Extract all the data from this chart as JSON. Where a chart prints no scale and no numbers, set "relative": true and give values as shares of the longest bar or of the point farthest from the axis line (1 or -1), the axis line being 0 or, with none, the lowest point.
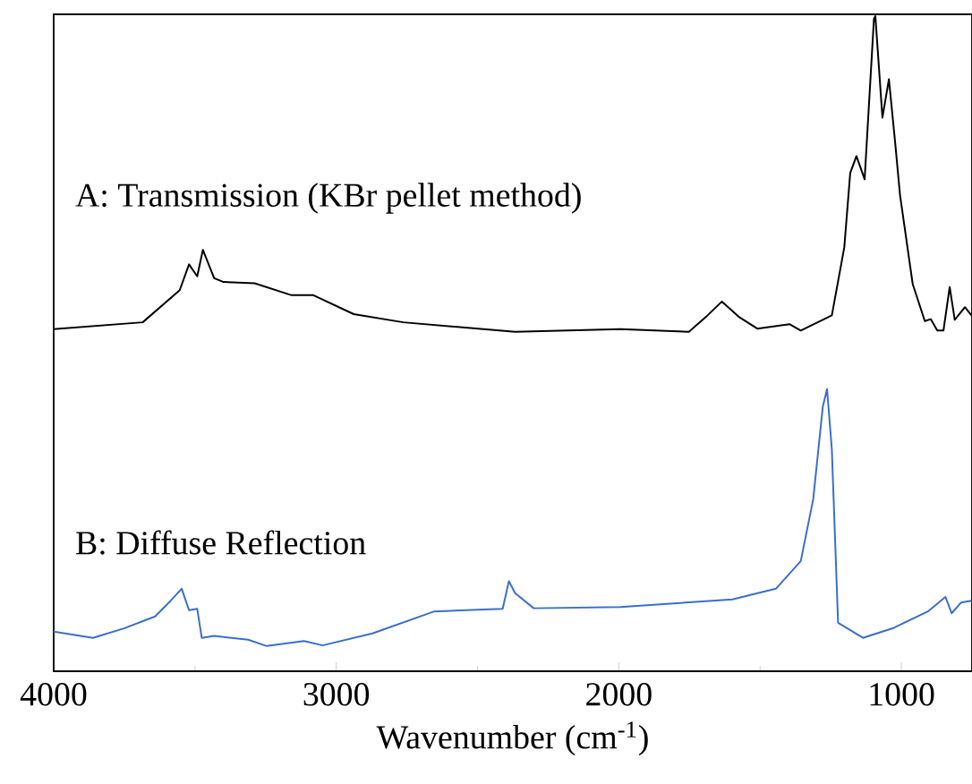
{
  "chart_data": {
    "type": "line",
    "relative": true,
    "xlabel": "Wavenumber (cm$^{-1}$)",
    "xlim": [
      4000,
      750
    ],
    "xticks": [
      4000,
      3000,
      2000,
      1000
    ],
    "series": [
      {
        "name": "A: Transmission (KBr pellet method)",
        "color": "#000000",
        "x": [
          4000,
          3685,
          3554,
          3521,
          3492,
          3472,
          3432,
          3399,
          3289,
          3158,
          3081,
          2938,
          2763,
          2367,
          1994,
          1752,
          1686,
          1635,
          1576,
          1510,
          1396,
          1356,
          1246,
          1202,
          1181,
          1159,
          1130,
          1097,
          1092,
          1067,
          1044,
          1020,
          1005,
          960,
          917,
          896,
          873,
          851,
          829,
          811,
          775,
          752
        ],
        "values": [
          0.503,
          0.514,
          0.565,
          0.606,
          0.587,
          0.629,
          0.584,
          0.578,
          0.576,
          0.557,
          0.557,
          0.527,
          0.514,
          0.499,
          0.503,
          0.499,
          0.525,
          0.547,
          0.523,
          0.504,
          0.511,
          0.501,
          0.525,
          0.633,
          0.751,
          0.778,
          0.741,
          0.996,
          1.0,
          0.839,
          0.9,
          0.79,
          0.717,
          0.575,
          0.516,
          0.519,
          0.501,
          0.501,
          0.57,
          0.518,
          0.538,
          0.525
        ]
      },
      {
        "name": "B: Diffuse Reflection",
        "color": "#3a6fcb",
        "x": [
          4000,
          3861,
          3751,
          3641,
          3586,
          3547,
          3521,
          3492,
          3476,
          3432,
          3312,
          3246,
          3114,
          3048,
          2872,
          2653,
          2411,
          2389,
          2367,
          2301,
          1994,
          1598,
          1444,
          1356,
          1312,
          1278,
          1263,
          1246,
          1224,
          1191,
          1136,
          1026,
          906,
          844,
          822,
          789,
          752
        ],
        "values": [
          0.023,
          0.013,
          0.028,
          0.047,
          0.072,
          0.091,
          0.057,
          0.059,
          0.013,
          0.016,
          0.01,
          0.0,
          0.008,
          0.001,
          0.02,
          0.055,
          0.059,
          0.103,
          0.084,
          0.06,
          0.062,
          0.074,
          0.091,
          0.135,
          0.233,
          0.38,
          0.408,
          0.312,
          0.037,
          0.028,
          0.013,
          0.029,
          0.055,
          0.078,
          0.052,
          0.069,
          0.072
        ]
      }
    ]
  }
}
